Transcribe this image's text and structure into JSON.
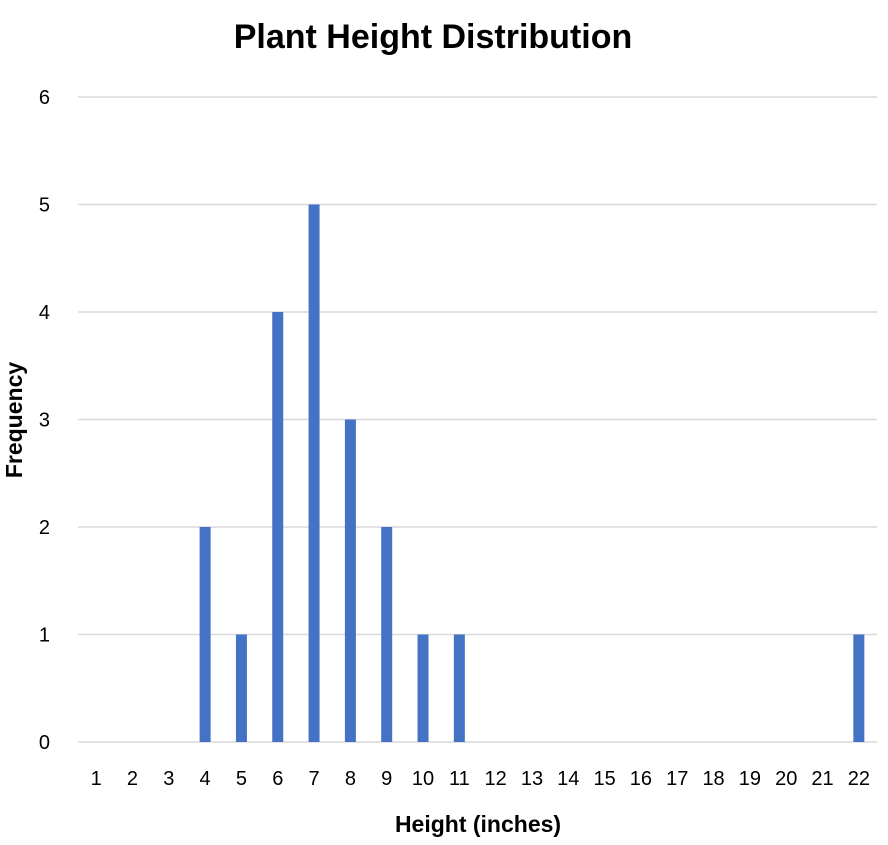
{
  "chart_data": {
    "type": "bar",
    "title": "Plant Height Distribution",
    "xlabel": "Height (inches)",
    "ylabel": "Frequency",
    "categories": [
      "1",
      "2",
      "3",
      "4",
      "5",
      "6",
      "7",
      "8",
      "9",
      "10",
      "11",
      "12",
      "13",
      "14",
      "15",
      "16",
      "17",
      "18",
      "19",
      "20",
      "21",
      "22"
    ],
    "values": [
      0,
      0,
      0,
      2,
      1,
      4,
      5,
      3,
      2,
      1,
      1,
      0,
      0,
      0,
      0,
      0,
      0,
      0,
      0,
      0,
      0,
      1
    ],
    "ylim": [
      0,
      6
    ],
    "yticks": [
      0,
      1,
      2,
      3,
      4,
      5,
      6
    ],
    "yticks_labels": [
      "0",
      "1",
      "2",
      "3",
      "4",
      "5",
      "6"
    ],
    "grid": true,
    "legend": "none",
    "colors": {
      "bar": "#4472c4",
      "grid": "#d9d9d9"
    }
  }
}
